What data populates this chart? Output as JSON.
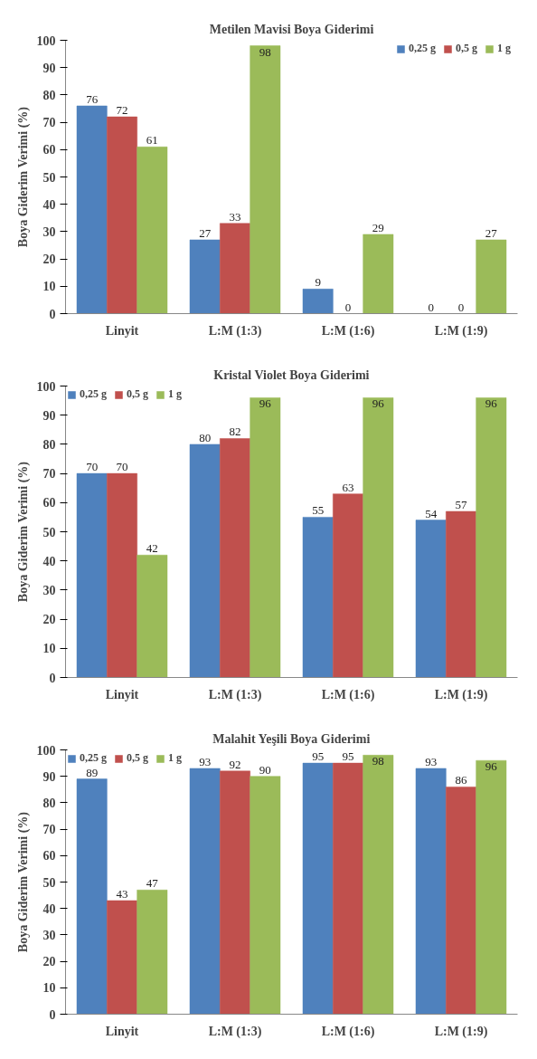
{
  "chart_data": [
    {
      "type": "bar",
      "title": "Metilen Mavisi Boya Giderimi",
      "ylabel": "Boya Giderim Verimi (%)",
      "categories": [
        "Linyit",
        "L:M (1:3)",
        "L:M (1:6)",
        "L:M (1:9)"
      ],
      "series": [
        {
          "name": "0,25 g",
          "color": "#4f81bd",
          "values": [
            76,
            27,
            9,
            0
          ]
        },
        {
          "name": "0,5 g",
          "color": "#c0504d",
          "values": [
            72,
            33,
            0,
            0
          ]
        },
        {
          "name": "1 g",
          "color": "#9bbb59",
          "values": [
            61,
            98,
            29,
            27
          ]
        }
      ],
      "ylim": [
        0,
        100
      ],
      "yticks": [
        0,
        10,
        20,
        30,
        40,
        50,
        60,
        70,
        80,
        90,
        100
      ],
      "grid": false,
      "legend": "top right",
      "data_labels": true
    },
    {
      "type": "bar",
      "title": "Kristal Violet Boya Giderimi",
      "ylabel": "Boya Giderim Verimi (%)",
      "categories": [
        "Linyit",
        "L:M (1:3)",
        "L:M (1:6)",
        "L:M (1:9)"
      ],
      "series": [
        {
          "name": "0,25 g",
          "color": "#4f81bd",
          "values": [
            70,
            80,
            55,
            54
          ]
        },
        {
          "name": "0,5 g",
          "color": "#c0504d",
          "values": [
            70,
            82,
            63,
            57
          ]
        },
        {
          "name": "1 g",
          "color": "#9bbb59",
          "values": [
            42,
            96,
            96,
            96
          ]
        }
      ],
      "ylim": [
        0,
        100
      ],
      "yticks": [
        0,
        10,
        20,
        30,
        40,
        50,
        60,
        70,
        80,
        90,
        100
      ],
      "grid": false,
      "legend": "top left",
      "data_labels": true
    },
    {
      "type": "bar",
      "title": "Malahit Yeşili Boya Giderimi",
      "ylabel": "Boya Giderim Verimi (%)",
      "categories": [
        "Linyit",
        "L:M (1:3)",
        "L:M (1:6)",
        "L:M (1:9)"
      ],
      "series": [
        {
          "name": "0,25 g",
          "color": "#4f81bd",
          "values": [
            89,
            93,
            95,
            93
          ]
        },
        {
          "name": "0,5 g",
          "color": "#c0504d",
          "values": [
            43,
            92,
            95,
            86
          ]
        },
        {
          "name": "1 g",
          "color": "#9bbb59",
          "values": [
            47,
            90,
            98,
            96
          ]
        }
      ],
      "ylim": [
        0,
        100
      ],
      "yticks": [
        0,
        10,
        20,
        30,
        40,
        50,
        60,
        70,
        80,
        90,
        100
      ],
      "grid": false,
      "legend": "top left",
      "data_labels": true
    }
  ]
}
